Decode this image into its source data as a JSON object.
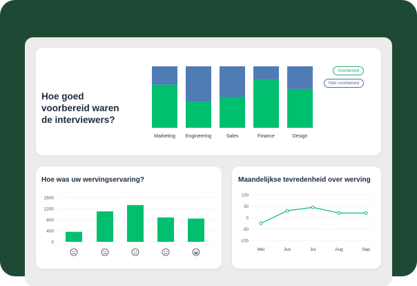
{
  "colors": {
    "background": "#1e4a35",
    "panel": "#ececec",
    "green": "#00bf6f",
    "blue": "#507cb6",
    "legend_green_border": "#2fae72",
    "legend_blue_border": "#4f6f94"
  },
  "top_card": {
    "question": "Hoe goed voorbereid waren de interviewers?",
    "legend": [
      {
        "label": "Voorbereid"
      },
      {
        "label": "Niet voorbereid"
      }
    ]
  },
  "left_card": {
    "title": "Hoe was uw wervingservaring?"
  },
  "right_card": {
    "title": "Maandelijkse tevredenheid over werving"
  },
  "chart_data": [
    {
      "type": "bar",
      "stacked": true,
      "categories": [
        "Marketing",
        "Engineering",
        "Sales",
        "Finance",
        "Design"
      ],
      "series": [
        {
          "name": "Voorbereid",
          "values": [
            70,
            42,
            50,
            78,
            63
          ]
        },
        {
          "name": "Niet voorbereid",
          "values": [
            30,
            58,
            50,
            22,
            37
          ]
        }
      ],
      "ylim": [
        0,
        100
      ],
      "title": "Hoe goed voorbereid waren de interviewers?",
      "legend": "top-right"
    },
    {
      "type": "bar",
      "categories": [
        "very-unhappy-icon",
        "unhappy-icon",
        "neutral-icon",
        "happy-icon",
        "very-happy-icon"
      ],
      "values": [
        360,
        1100,
        1330,
        880,
        840
      ],
      "yticks": [
        "0",
        "400",
        "800",
        "1200",
        "1600"
      ],
      "ylim": [
        0,
        1600
      ],
      "title": "Hoe was uw wervingservaring?",
      "grid": true
    },
    {
      "type": "line",
      "categories": [
        "Mei",
        "Jun",
        "Jul",
        "Aug",
        "Sep"
      ],
      "values": [
        -25,
        30,
        45,
        20,
        20
      ],
      "yticks": [
        "100",
        "50",
        "0",
        "-50",
        "-100"
      ],
      "ylim": [
        -100,
        100
      ],
      "title": "Maandelijkse tevredenheid over werving",
      "grid": true
    }
  ]
}
